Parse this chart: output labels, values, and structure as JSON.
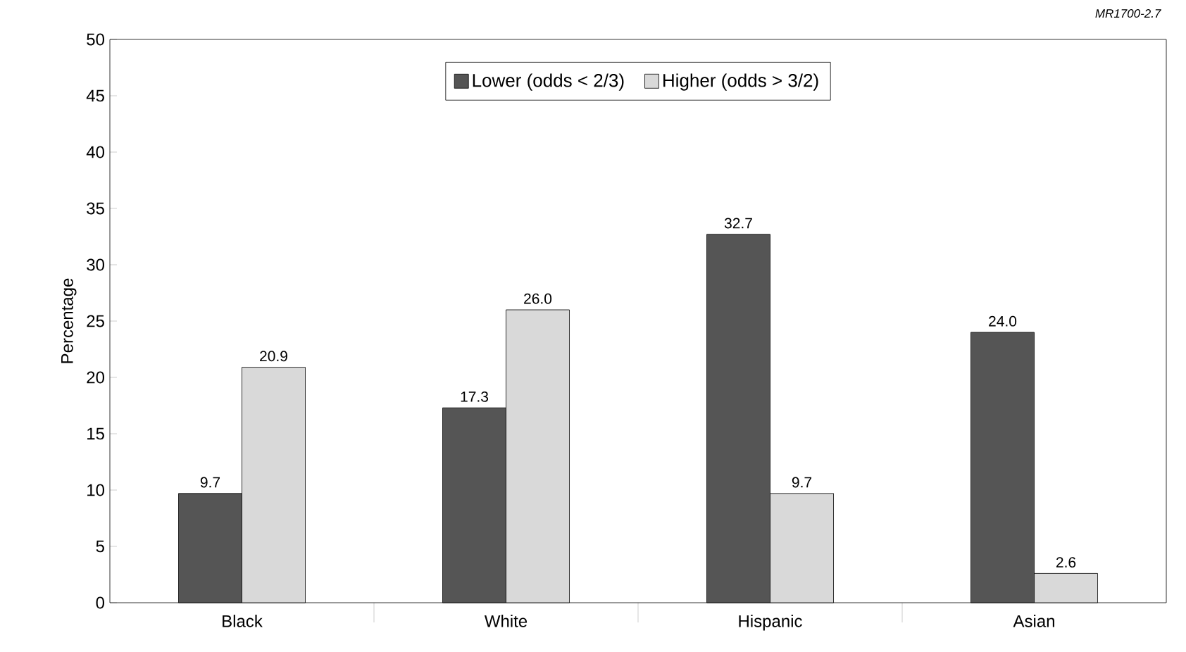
{
  "chart_data": {
    "type": "bar",
    "ylabel": "Percentage",
    "categories": [
      "Black",
      "White",
      "Hispanic",
      "Asian"
    ],
    "series": [
      {
        "name": "Lower (odds < 2/3)",
        "color": "#555555",
        "values": [
          9.7,
          17.3,
          32.7,
          24.0
        ],
        "value_labels": [
          "9.7",
          "17.3",
          "32.7",
          "24.0"
        ]
      },
      {
        "name": "Higher (odds > 3/2)",
        "color": "#d9d9d9",
        "values": [
          20.9,
          26.0,
          9.7,
          2.6
        ],
        "value_labels": [
          "20.9",
          "26.0",
          "9.7",
          "2.6"
        ]
      }
    ],
    "ylim": [
      0,
      50
    ],
    "yticks": [
      0,
      5,
      10,
      15,
      20,
      25,
      30,
      35,
      40,
      45,
      50
    ],
    "grid": false,
    "legend": "top",
    "annotations": [
      "*MR1700-2.7*"
    ]
  }
}
